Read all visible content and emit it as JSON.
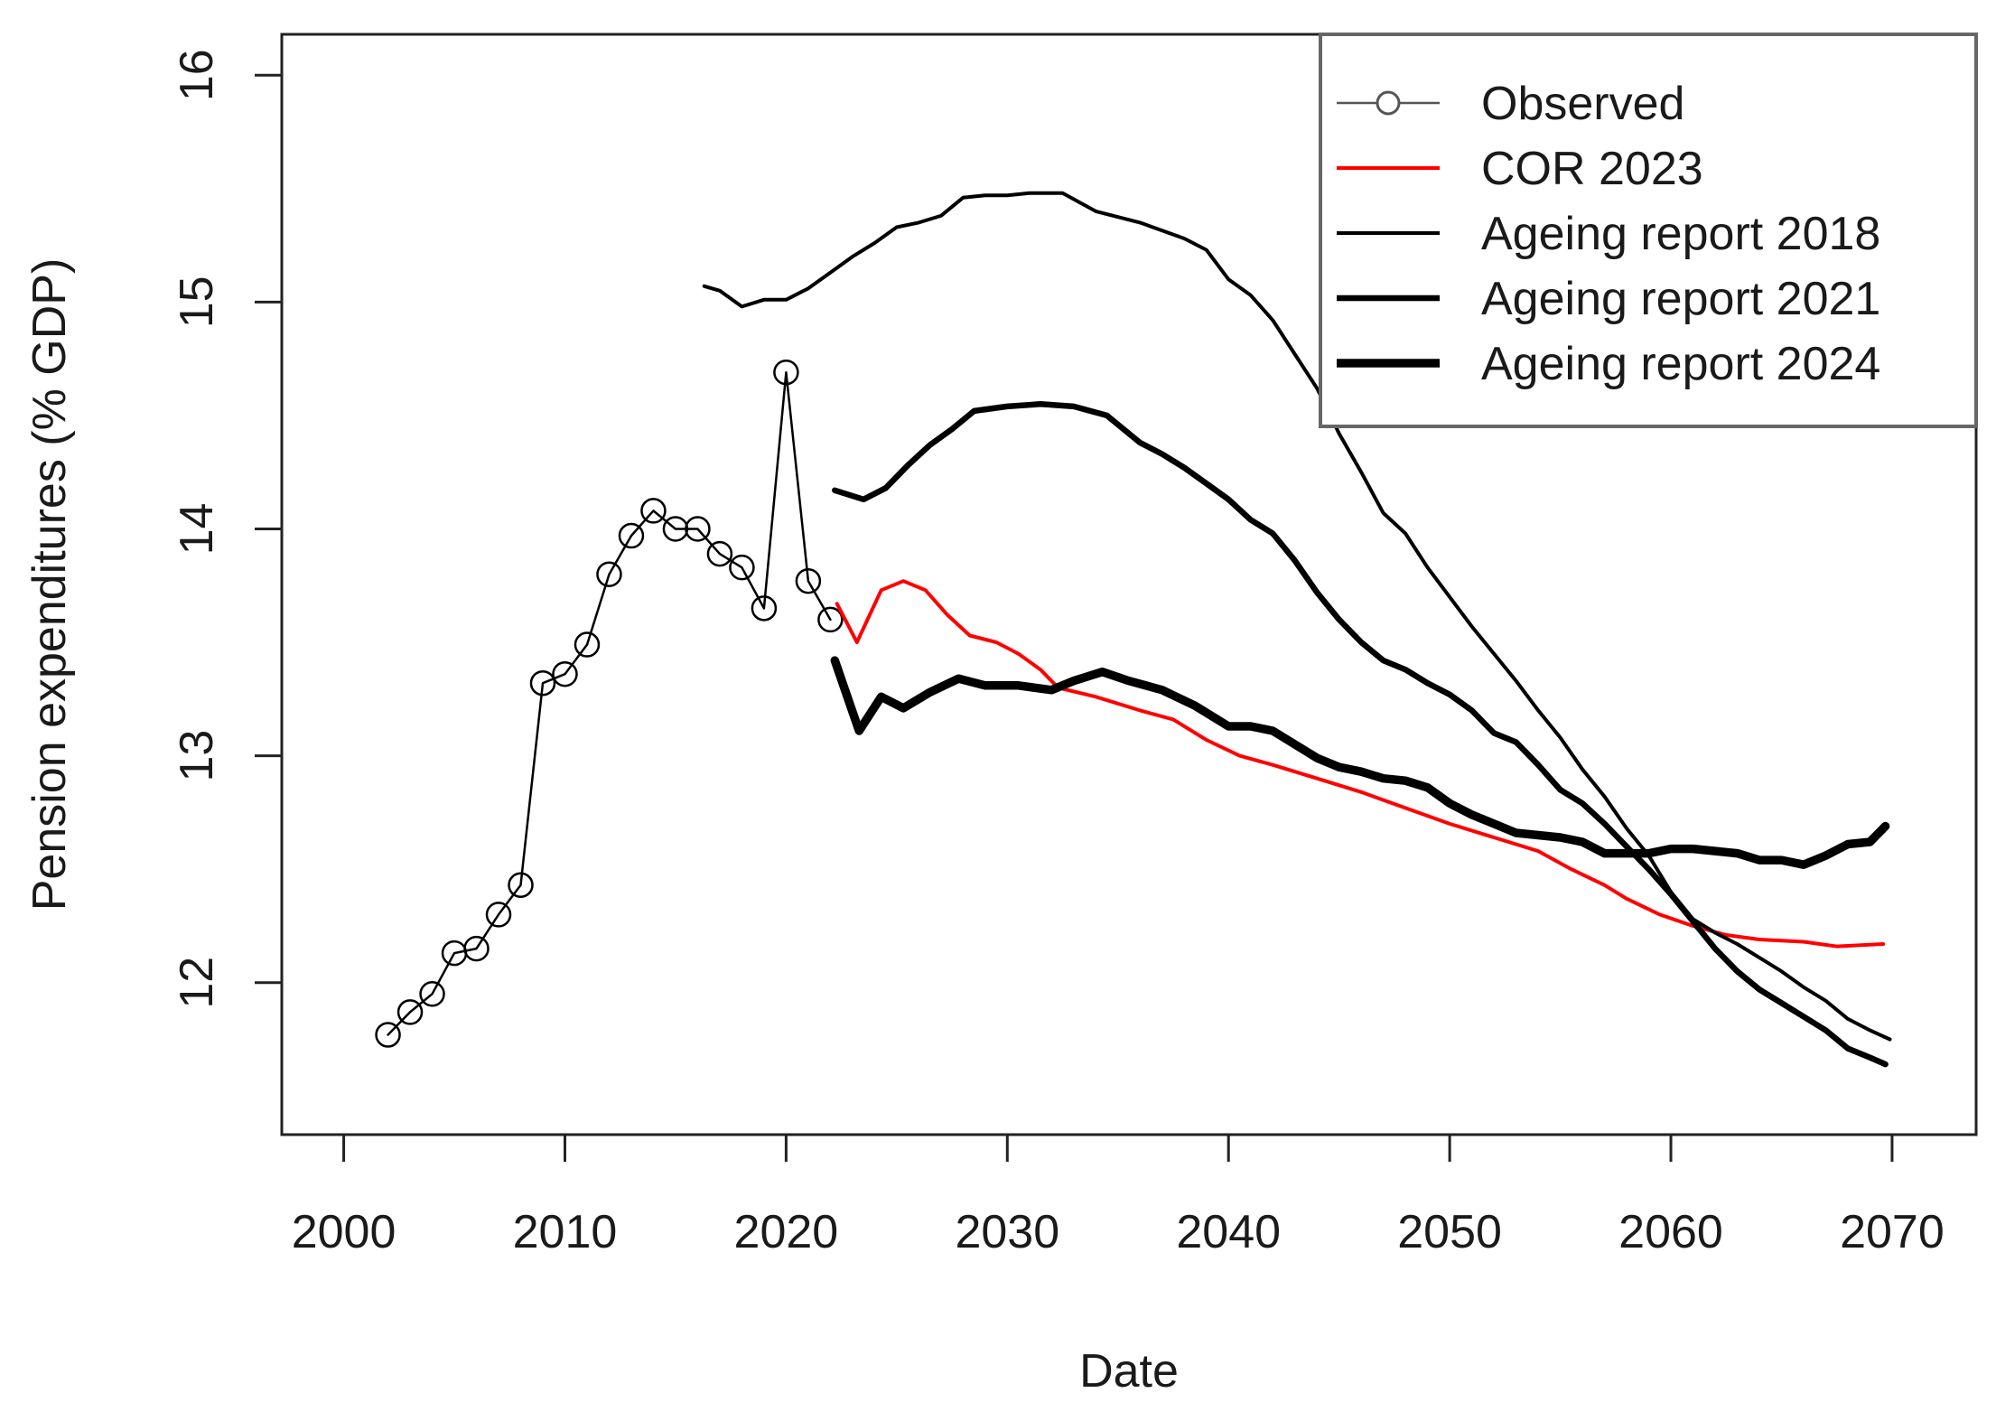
{
  "chart_data": {
    "type": "line",
    "title": "",
    "xlabel": "Date",
    "ylabel": "Pension expenditures (% GDP)",
    "xlim": [
      1997.2,
      2073.8
    ],
    "ylim": [
      11.33,
      16.18
    ],
    "x_ticks": [
      2000,
      2010,
      2020,
      2030,
      2040,
      2050,
      2060,
      2070
    ],
    "y_ticks": [
      12,
      13,
      14,
      15,
      16
    ],
    "grid": false,
    "legend_position": "top-right",
    "series": [
      {
        "name": "Observed",
        "color": "#000000",
        "legend_line_color": "#555555",
        "style": "line-with-circle-markers",
        "x": [
          2002,
          2003,
          2004,
          2005,
          2006,
          2007,
          2008,
          2009,
          2010,
          2011,
          2012,
          2013,
          2014,
          2015,
          2016,
          2017,
          2018,
          2019,
          2020,
          2021,
          2022
        ],
        "y": [
          11.77,
          11.87,
          11.95,
          12.13,
          12.15,
          12.3,
          12.43,
          13.32,
          13.36,
          13.49,
          13.8,
          13.97,
          14.08,
          14.0,
          14.0,
          13.89,
          13.83,
          13.65,
          14.69,
          13.77,
          13.6
        ]
      },
      {
        "name": "COR 2023",
        "color": "#ff0000",
        "style": "line-thin",
        "x": [
          2022.3,
          2023.2,
          2024.3,
          2025.3,
          2026.3,
          2027.3,
          2028.3,
          2029.5,
          2030.5,
          2031.5,
          2032.3,
          2034,
          2036,
          2037.5,
          2039,
          2040.5,
          2042,
          2044,
          2046,
          2048,
          2050,
          2052,
          2054,
          2055.5,
          2057,
          2058,
          2059.5,
          2061,
          2062.5,
          2064,
          2066,
          2067.5,
          2069.6
        ],
        "y": [
          13.67,
          13.5,
          13.73,
          13.77,
          13.73,
          13.62,
          13.53,
          13.5,
          13.45,
          13.38,
          13.3,
          13.26,
          13.2,
          13.16,
          13.07,
          13.0,
          12.96,
          12.9,
          12.84,
          12.77,
          12.7,
          12.64,
          12.58,
          12.5,
          12.43,
          12.37,
          12.3,
          12.25,
          12.21,
          12.19,
          12.18,
          12.16,
          12.17
        ]
      },
      {
        "name": "Ageing report 2018",
        "color": "#000000",
        "style": "line-thin",
        "x": [
          2016.3,
          2017,
          2018,
          2019,
          2020,
          2021,
          2022,
          2023,
          2024,
          2025,
          2026,
          2027,
          2028,
          2029,
          2030,
          2031,
          2032.5,
          2034,
          2036,
          2038,
          2039,
          2040,
          2041,
          2042,
          2043,
          2044,
          2045,
          2046,
          2047,
          2048,
          2049,
          2050,
          2051,
          2052,
          2053,
          2054,
          2055,
          2056,
          2057,
          2058,
          2059,
          2060,
          2061,
          2062,
          2063,
          2064,
          2065,
          2066,
          2067,
          2068,
          2069,
          2069.9
        ],
        "y": [
          15.07,
          15.05,
          14.98,
          15.01,
          15.01,
          15.06,
          15.13,
          15.2,
          15.26,
          15.33,
          15.35,
          15.38,
          15.46,
          15.47,
          15.47,
          15.48,
          15.48,
          15.4,
          15.35,
          15.28,
          15.23,
          15.1,
          15.03,
          14.92,
          14.77,
          14.62,
          14.42,
          14.25,
          14.07,
          13.98,
          13.83,
          13.7,
          13.57,
          13.45,
          13.33,
          13.2,
          13.08,
          12.94,
          12.82,
          12.68,
          12.56,
          12.4,
          12.28,
          12.22,
          12.17,
          12.11,
          12.05,
          11.98,
          11.92,
          11.84,
          11.79,
          11.75
        ]
      },
      {
        "name": "Ageing report 2021",
        "color": "#000000",
        "style": "line-medium",
        "x": [
          2022.2,
          2023.5,
          2024.5,
          2025.5,
          2026.5,
          2027.5,
          2028.5,
          2030,
          2031.5,
          2033,
          2034.5,
          2036,
          2037,
          2038,
          2039,
          2040,
          2041,
          2042,
          2043,
          2044,
          2045,
          2046,
          2047,
          2048,
          2049,
          2050,
          2051,
          2052,
          2053,
          2054,
          2055,
          2056,
          2057,
          2058,
          2059,
          2060,
          2061,
          2062,
          2063,
          2064,
          2065,
          2066,
          2067,
          2068,
          2069,
          2069.7
        ],
        "y": [
          14.17,
          14.13,
          14.18,
          14.28,
          14.37,
          14.44,
          14.52,
          14.54,
          14.55,
          14.54,
          14.5,
          14.38,
          14.33,
          14.27,
          14.2,
          14.13,
          14.04,
          13.98,
          13.86,
          13.72,
          13.6,
          13.5,
          13.42,
          13.38,
          13.32,
          13.27,
          13.2,
          13.1,
          13.06,
          12.96,
          12.85,
          12.79,
          12.7,
          12.6,
          12.5,
          12.39,
          12.27,
          12.15,
          12.05,
          11.97,
          11.91,
          11.85,
          11.79,
          11.71,
          11.67,
          11.64
        ]
      },
      {
        "name": "Ageing report 2024",
        "color": "#000000",
        "style": "line-thick",
        "x": [
          2022.2,
          2023.3,
          2024.3,
          2025.3,
          2026.5,
          2027.8,
          2029,
          2030.5,
          2032,
          2033,
          2034.3,
          2035.5,
          2037,
          2038.5,
          2040,
          2041,
          2042,
          2043,
          2044,
          2045,
          2046,
          2047,
          2048,
          2049,
          2050,
          2051,
          2052,
          2053,
          2054,
          2055,
          2056,
          2057,
          2058,
          2059,
          2060,
          2061,
          2062,
          2063,
          2064,
          2065,
          2066,
          2067,
          2068,
          2069,
          2069.7
        ],
        "y": [
          13.42,
          13.11,
          13.26,
          13.21,
          13.28,
          13.34,
          13.31,
          13.31,
          13.29,
          13.33,
          13.37,
          13.33,
          13.29,
          13.22,
          13.13,
          13.13,
          13.11,
          13.05,
          12.99,
          12.95,
          12.93,
          12.9,
          12.89,
          12.86,
          12.79,
          12.74,
          12.7,
          12.66,
          12.65,
          12.64,
          12.62,
          12.57,
          12.57,
          12.57,
          12.59,
          12.59,
          12.58,
          12.57,
          12.54,
          12.54,
          12.52,
          12.56,
          12.61,
          12.62,
          12.69
        ]
      }
    ]
  }
}
